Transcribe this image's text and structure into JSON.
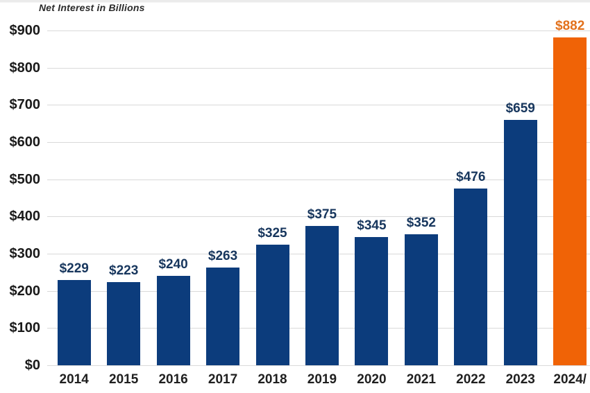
{
  "chart_data": {
    "type": "bar",
    "title": "Net Interest in Billions",
    "categories": [
      "2014",
      "2015",
      "2016",
      "2017",
      "2018",
      "2019",
      "2020",
      "2021",
      "2022",
      "2023",
      "2024/"
    ],
    "values": [
      229,
      223,
      240,
      263,
      325,
      375,
      345,
      352,
      476,
      659,
      882
    ],
    "bar_labels": [
      "$229",
      "$223",
      "$240",
      "$263",
      "$325",
      "$375",
      "$345",
      "$352",
      "$476",
      "$659",
      "$882"
    ],
    "ytick_labels": [
      "$0",
      "$100",
      "$200",
      "$300",
      "$400",
      "$500",
      "$600",
      "$700",
      "$800",
      "$900"
    ],
    "ylim": [
      0,
      900
    ],
    "ytick_step": 100,
    "grid": true,
    "legend": "none",
    "highlight_index": 10
  },
  "colors": {
    "bar": "#0c3c7c",
    "bar_highlight": "#f06306",
    "value_label": "#17365d",
    "value_label_highlight": "#e2711c",
    "gridline": "#d9d9d9",
    "axis_text": "#1a1a1a",
    "title_text": "#2b2b2b"
  }
}
